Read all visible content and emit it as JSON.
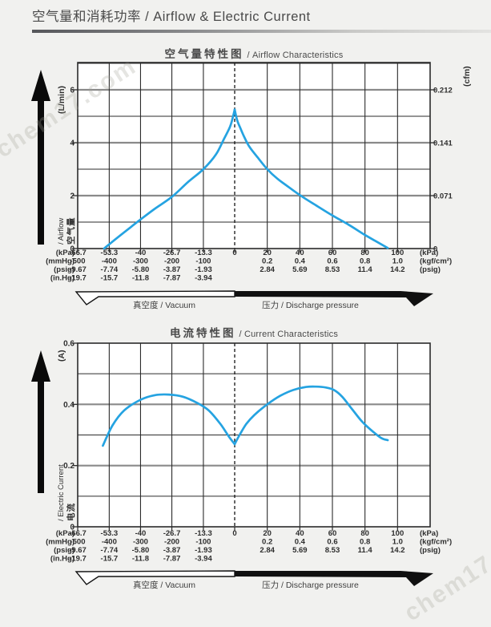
{
  "header": {
    "title": "空气量和消耗功率 / Airflow & Electric Current"
  },
  "watermark": {
    "text": "chem17.com"
  },
  "colors": {
    "accent": "#25a3e1",
    "page_bg": "#f1f1ef",
    "plot_bg": "#ffffff",
    "frame": "#2b2b2b",
    "grid_minor": "#2b2b2b",
    "grid_major": "#8a8a8a",
    "text": "#2e2e2e"
  },
  "x_axis": {
    "xlim_kpa": [
      -66.7,
      120
    ],
    "zero_line": "dashed",
    "gridlines_kpa": [
      -66.7,
      -53.3,
      -40,
      -26.7,
      -13.3,
      0,
      20,
      40,
      60,
      80,
      100
    ],
    "rows": [
      {
        "left_unit": "(kPa)",
        "right_unit": "(kPa)",
        "labels": [
          [
            "-66.7",
            -66.7
          ],
          [
            "-53.3",
            -53.3
          ],
          [
            "-40",
            -40
          ],
          [
            "-26.7",
            -26.7
          ],
          [
            "-13.3",
            -13.3
          ],
          [
            "0",
            0
          ],
          [
            "20",
            20
          ],
          [
            "40",
            40
          ],
          [
            "60",
            60
          ],
          [
            "80",
            80
          ],
          [
            "100",
            100
          ]
        ]
      },
      {
        "left_unit": "(mmHg)",
        "right_unit": "(kgf/cm²)",
        "labels": [
          [
            "-500",
            -66.7
          ],
          [
            "-400",
            -53.3
          ],
          [
            "-300",
            -40
          ],
          [
            "-200",
            -26.7
          ],
          [
            "-100",
            -13.3
          ],
          [
            "0.2",
            20
          ],
          [
            "0.4",
            40
          ],
          [
            "0.6",
            60
          ],
          [
            "0.8",
            80
          ],
          [
            "1.0",
            100
          ]
        ]
      },
      {
        "left_unit": "(psig)",
        "right_unit": "(psig)",
        "labels": [
          [
            "-9.67",
            -66.7
          ],
          [
            "-7.74",
            -53.3
          ],
          [
            "-5.80",
            -40
          ],
          [
            "-3.87",
            -26.7
          ],
          [
            "-1.93",
            -13.3
          ],
          [
            "2.84",
            20
          ],
          [
            "5.69",
            40
          ],
          [
            "8.53",
            60
          ],
          [
            "11.4",
            80
          ],
          [
            "14.2",
            100
          ]
        ]
      },
      {
        "left_unit": "(in.Hg)",
        "right_unit": "",
        "labels": [
          [
            "-19.7",
            -66.7
          ],
          [
            "-15.7",
            -53.3
          ],
          [
            "-11.8",
            -40
          ],
          [
            "-7.87",
            -26.7
          ],
          [
            "-3.94",
            -13.3
          ]
        ]
      }
    ]
  },
  "chart_data": [
    {
      "type": "line",
      "title_zh": "空气量特性图",
      "title_en": "/ Airflow Characteristics",
      "y_axis": {
        "unit": "(L/min)",
        "label_zh": "空气量",
        "label_en": "/ Airflow",
        "ylim": [
          0,
          7.03
        ],
        "grid_step": 1,
        "ticks": [
          {
            "v": 6,
            "t": "6"
          },
          {
            "v": 4,
            "t": "4"
          },
          {
            "v": 2,
            "t": "2"
          },
          {
            "v": 0,
            "t": "0"
          }
        ]
      },
      "y2_axis": {
        "unit": "(cfm)",
        "ticks": [
          {
            "v": 6,
            "t": "0.212"
          },
          {
            "v": 4,
            "t": "0.141"
          },
          {
            "v": 2,
            "t": "0.071"
          },
          {
            "v": 0,
            "t": "0"
          }
        ]
      },
      "series": [
        {
          "name": "vacuum-side",
          "points": [
            [
              -55.5,
              0
            ],
            [
              -50,
              0.4
            ],
            [
              -44,
              0.82
            ],
            [
              -40,
              1.1
            ],
            [
              -34,
              1.5
            ],
            [
              -26.7,
              1.95
            ],
            [
              -20,
              2.5
            ],
            [
              -13.3,
              3.0
            ],
            [
              -8,
              3.55
            ],
            [
              -4.5,
              4.15
            ],
            [
              -2,
              4.6
            ],
            [
              -0.8,
              4.95
            ],
            [
              0,
              5.25
            ]
          ]
        },
        {
          "name": "pressure-side",
          "points": [
            [
              0,
              5.25
            ],
            [
              1.5,
              4.85
            ],
            [
              3.5,
              4.55
            ],
            [
              6,
              4.2
            ],
            [
              9,
              3.85
            ],
            [
              14,
              3.45
            ],
            [
              20,
              3.0
            ],
            [
              26,
              2.65
            ],
            [
              31,
              2.42
            ],
            [
              40,
              2.02
            ],
            [
              50,
              1.63
            ],
            [
              60,
              1.25
            ],
            [
              70,
              0.9
            ],
            [
              79,
              0.55
            ],
            [
              86,
              0.3
            ],
            [
              94,
              0.02
            ]
          ]
        }
      ],
      "footer": {
        "left": "真空度 / Vacuum",
        "right": "压力 / Discharge pressure"
      }
    },
    {
      "type": "line",
      "title_zh": "电流特性图",
      "title_en": "/ Current Characteristics",
      "y_axis": {
        "unit": "(A)",
        "label_zh": "电流",
        "label_en": "/ Electric Current",
        "ylim": [
          0,
          0.6
        ],
        "grid_step": 0.1,
        "ticks": [
          {
            "v": 0.6,
            "t": "0.6"
          },
          {
            "v": 0.4,
            "t": "0.4"
          },
          {
            "v": 0.2,
            "t": "0.2"
          },
          {
            "v": 0,
            "t": "0"
          }
        ]
      },
      "series": [
        {
          "name": "vacuum-side",
          "points": [
            [
              -56,
              0.265
            ],
            [
              -52,
              0.33
            ],
            [
              -47,
              0.38
            ],
            [
              -40,
              0.415
            ],
            [
              -34,
              0.43
            ],
            [
              -28,
              0.432
            ],
            [
              -22,
              0.425
            ],
            [
              -16,
              0.405
            ],
            [
              -11,
              0.38
            ],
            [
              -6,
              0.335
            ],
            [
              -2.5,
              0.295
            ],
            [
              0,
              0.27
            ]
          ]
        },
        {
          "name": "pressure-side",
          "points": [
            [
              0,
              0.27
            ],
            [
              3,
              0.3
            ],
            [
              7,
              0.335
            ],
            [
              12,
              0.365
            ],
            [
              20,
              0.4
            ],
            [
              28,
              0.428
            ],
            [
              36,
              0.447
            ],
            [
              44,
              0.457
            ],
            [
              50,
              0.458
            ],
            [
              56,
              0.455
            ],
            [
              61,
              0.447
            ],
            [
              66,
              0.425
            ],
            [
              72,
              0.385
            ],
            [
              78,
              0.345
            ],
            [
              84,
              0.315
            ],
            [
              90,
              0.29
            ],
            [
              94,
              0.283
            ]
          ]
        }
      ],
      "footer": {
        "left": "真空度 / Vacuum",
        "right": "压力 / Discharge pressure"
      }
    }
  ]
}
